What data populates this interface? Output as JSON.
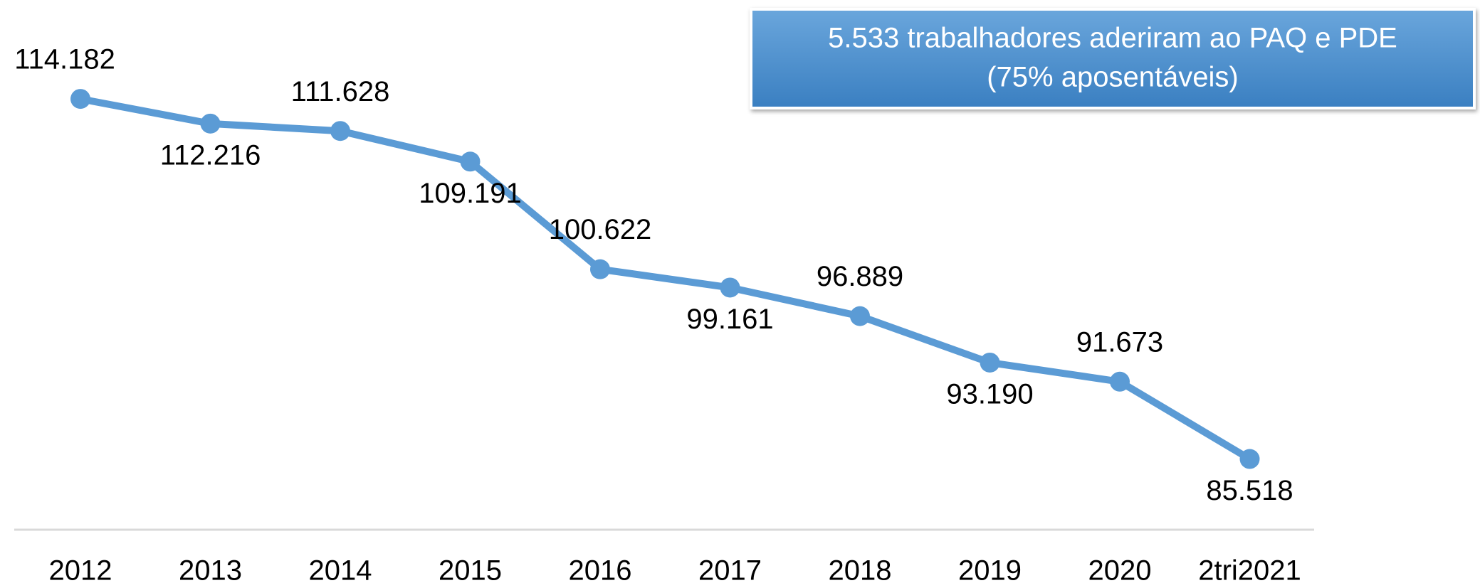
{
  "chart_data": {
    "type": "line",
    "categories": [
      "2012",
      "2013",
      "2014",
      "2015",
      "2016",
      "2017",
      "2018",
      "2019",
      "2020",
      "2tri2021"
    ],
    "series": [
      {
        "color": "#5b9bd5",
        "values": [
          114182,
          112216,
          111628,
          109191,
          100622,
          99161,
          96889,
          93190,
          91673,
          85518
        ],
        "value_labels": [
          "114.182",
          "112.216",
          "111.628",
          "109.191",
          "100.622",
          "99.161",
          "96.889",
          "93.190",
          "91.673",
          "85.518"
        ]
      }
    ],
    "ylim": [
      80000,
      122000
    ],
    "annotation": [
      "5.533 trabalhadores aderiram ao PAQ e PDE",
      "(75% aposentáveis)"
    ]
  }
}
